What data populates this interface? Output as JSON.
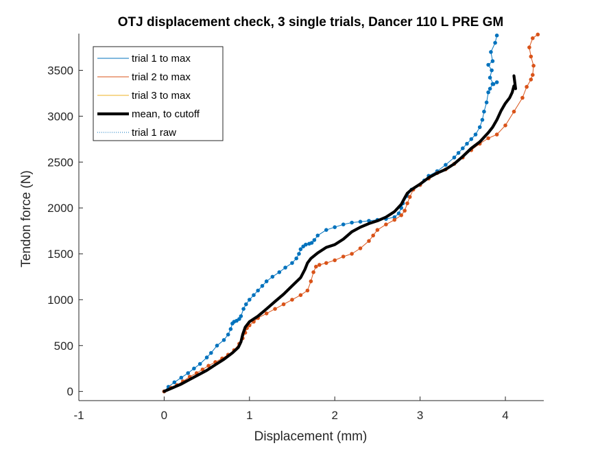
{
  "chart_data": {
    "type": "line",
    "title": "OTJ displacement check, 3 single trials, Dancer 110 L PRE GM",
    "xlabel": "Displacement (mm)",
    "ylabel": "Tendon force (N)",
    "xlim": [
      -1,
      4.45
    ],
    "ylim": [
      -100,
      3900
    ],
    "xticks": [
      -1,
      0,
      1,
      2,
      3,
      4
    ],
    "yticks": [
      0,
      500,
      1000,
      1500,
      2000,
      2500,
      3000,
      3500
    ],
    "legend_placement": "top-left",
    "series": [
      {
        "name": "trial 1 to max",
        "color": "#0072BD",
        "markers": true,
        "x": [
          0.0,
          0.05,
          0.12,
          0.2,
          0.28,
          0.35,
          0.42,
          0.5,
          0.55,
          0.62,
          0.7,
          0.75,
          0.78,
          0.8,
          0.82,
          0.85,
          0.88,
          0.9,
          0.93,
          0.96,
          1.0,
          1.05,
          1.1,
          1.15,
          1.2,
          1.27,
          1.35,
          1.42,
          1.5,
          1.55,
          1.58,
          1.6,
          1.63,
          1.66,
          1.7,
          1.73,
          1.76,
          1.8,
          1.9,
          2.0,
          2.1,
          2.2,
          2.3,
          2.4,
          2.5,
          2.6,
          2.7,
          2.75,
          2.78,
          2.8,
          2.85,
          2.9,
          3.0,
          3.05,
          3.1,
          3.2,
          3.3,
          3.4,
          3.45,
          3.5,
          3.55,
          3.6,
          3.65,
          3.7,
          3.73,
          3.75,
          3.78,
          3.8,
          3.82,
          3.85,
          3.9,
          3.86,
          3.82,
          3.84,
          3.8,
          3.85,
          3.83,
          3.88,
          3.9
        ],
        "y": [
          0,
          50,
          100,
          150,
          200,
          250,
          300,
          370,
          420,
          500,
          560,
          620,
          680,
          740,
          760,
          770,
          790,
          820,
          900,
          950,
          1000,
          1050,
          1100,
          1150,
          1200,
          1250,
          1300,
          1350,
          1400,
          1450,
          1500,
          1550,
          1580,
          1600,
          1610,
          1620,
          1650,
          1700,
          1760,
          1790,
          1820,
          1840,
          1850,
          1860,
          1870,
          1880,
          1900,
          1940,
          2000,
          2050,
          2130,
          2200,
          2250,
          2300,
          2350,
          2400,
          2470,
          2550,
          2600,
          2650,
          2700,
          2750,
          2800,
          2880,
          2960,
          3050,
          3150,
          3260,
          3300,
          3350,
          3370,
          3350,
          3420,
          3500,
          3560,
          3600,
          3700,
          3800,
          3880
        ]
      },
      {
        "name": "trial 2 to max",
        "color": "#D95319",
        "markers": true,
        "x": [
          0.0,
          0.08,
          0.15,
          0.22,
          0.3,
          0.38,
          0.45,
          0.52,
          0.6,
          0.68,
          0.75,
          0.82,
          0.88,
          0.92,
          0.95,
          0.97,
          1.0,
          1.05,
          1.1,
          1.2,
          1.3,
          1.4,
          1.5,
          1.6,
          1.68,
          1.72,
          1.75,
          1.78,
          1.82,
          1.9,
          2.0,
          2.1,
          2.2,
          2.3,
          2.4,
          2.45,
          2.5,
          2.6,
          2.7,
          2.78,
          2.82,
          2.85,
          2.88,
          2.92,
          3.0,
          3.1,
          3.2,
          3.3,
          3.4,
          3.5,
          3.6,
          3.7,
          3.8,
          3.9,
          4.0,
          4.1,
          4.2,
          4.25,
          4.3,
          4.32,
          4.33,
          4.3,
          4.28,
          4.32,
          4.38
        ],
        "y": [
          0,
          40,
          70,
          110,
          160,
          200,
          240,
          280,
          320,
          360,
          400,
          450,
          520,
          580,
          640,
          690,
          720,
          760,
          800,
          850,
          900,
          950,
          1000,
          1050,
          1100,
          1200,
          1300,
          1360,
          1380,
          1400,
          1430,
          1470,
          1500,
          1560,
          1640,
          1700,
          1760,
          1820,
          1870,
          1920,
          1970,
          2050,
          2120,
          2200,
          2250,
          2320,
          2380,
          2420,
          2480,
          2550,
          2630,
          2700,
          2760,
          2800,
          2900,
          3050,
          3200,
          3320,
          3400,
          3450,
          3550,
          3650,
          3750,
          3850,
          3890
        ]
      },
      {
        "name": "trial 3 to max",
        "color": "#EDB120",
        "markers": false,
        "x": [],
        "y": []
      },
      {
        "name": "mean, to cutoff",
        "color": "#000000",
        "markers": false,
        "x": [
          0.0,
          0.1,
          0.2,
          0.3,
          0.4,
          0.5,
          0.6,
          0.7,
          0.8,
          0.87,
          0.9,
          0.92,
          0.95,
          1.0,
          1.1,
          1.2,
          1.3,
          1.4,
          1.5,
          1.6,
          1.65,
          1.68,
          1.72,
          1.8,
          1.9,
          2.0,
          2.1,
          2.2,
          2.3,
          2.4,
          2.5,
          2.6,
          2.7,
          2.78,
          2.82,
          2.85,
          2.9,
          3.0,
          3.1,
          3.2,
          3.3,
          3.4,
          3.5,
          3.6,
          3.7,
          3.8,
          3.85,
          3.9,
          3.95,
          4.0,
          4.05,
          4.08,
          4.1,
          4.12,
          4.1
        ],
        "y": [
          0,
          40,
          80,
          130,
          180,
          230,
          290,
          350,
          420,
          480,
          540,
          620,
          700,
          760,
          820,
          900,
          980,
          1060,
          1150,
          1240,
          1330,
          1400,
          1450,
          1510,
          1570,
          1600,
          1660,
          1740,
          1790,
          1830,
          1860,
          1900,
          1960,
          2040,
          2110,
          2160,
          2200,
          2260,
          2330,
          2380,
          2420,
          2480,
          2560,
          2650,
          2720,
          2820,
          2880,
          2960,
          3060,
          3140,
          3200,
          3260,
          3330,
          3300,
          3440
        ]
      },
      {
        "name": "trial 1 raw",
        "color": "#0072BD",
        "markers": false,
        "dotted": true,
        "x": [],
        "y": []
      }
    ]
  }
}
